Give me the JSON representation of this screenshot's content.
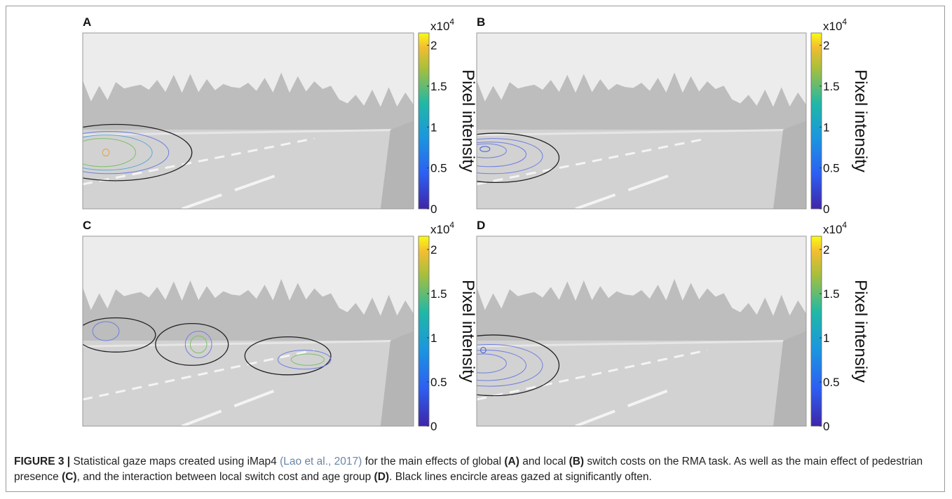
{
  "figure": {
    "panels": [
      {
        "label": "A",
        "colorbar": {
          "exponent_base": "x10",
          "exponent": "4",
          "label": "Pixel intensity",
          "lim": [
            0,
            2.15
          ],
          "ticks": [
            0,
            0.5,
            1,
            1.5,
            2
          ]
        }
      },
      {
        "label": "B",
        "colorbar": {
          "exponent_base": "x10",
          "exponent": "4",
          "label": "Pixel intensity",
          "lim": [
            0,
            2.15
          ],
          "ticks": [
            0,
            0.5,
            1,
            1.5,
            2
          ]
        }
      },
      {
        "label": "C",
        "colorbar": {
          "exponent_base": "x10",
          "exponent": "4",
          "label": "Pixel intensity",
          "lim": [
            0,
            2.15
          ],
          "ticks": [
            0,
            0.5,
            1,
            1.5,
            2
          ]
        }
      },
      {
        "label": "D",
        "colorbar": {
          "exponent_base": "x10",
          "exponent": "4",
          "label": "Pixel intensity",
          "lim": [
            0,
            2.15
          ],
          "ticks": [
            0,
            0.5,
            1,
            1.5,
            2
          ]
        }
      }
    ]
  },
  "caption": {
    "label": "FIGURE 3 |",
    "segments": [
      {
        "text": " Statistical gaze maps created using iMap4 ",
        "style": "normal"
      },
      {
        "text": "(Lao et al., 2017)",
        "style": "link"
      },
      {
        "text": " for the main effects of global ",
        "style": "normal"
      },
      {
        "text": "(A)",
        "style": "bold"
      },
      {
        "text": " and local ",
        "style": "normal"
      },
      {
        "text": "(B)",
        "style": "bold"
      },
      {
        "text": " switch costs on the RMA task. As well as the main effect of pedestrian presence ",
        "style": "normal"
      },
      {
        "text": "(C)",
        "style": "bold"
      },
      {
        "text": ", and the interaction between local switch cost and age group ",
        "style": "normal"
      },
      {
        "text": "(D)",
        "style": "bold"
      },
      {
        "text": ". Black lines encircle areas gazed at significantly often.",
        "style": "normal"
      }
    ]
  }
}
